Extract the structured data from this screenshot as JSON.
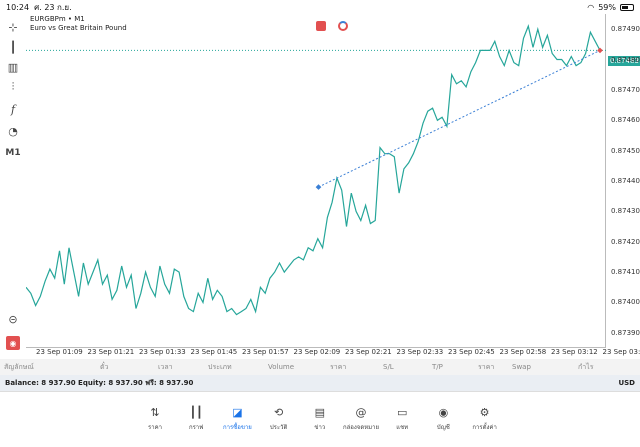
{
  "status": {
    "time": "10:24",
    "date": "ศ. 23 ก.ย.",
    "battery": "59%"
  },
  "chart": {
    "symbol": "EURGBPm • M1",
    "description": "Euro vs Great Britain Pound",
    "current_price": "0.87483",
    "line_color": "#26a69a",
    "trend_color": "#3a7fd5",
    "price_ticks": [
      "0.87490",
      "0.87480",
      "0.87470",
      "0.87460",
      "0.87450",
      "0.87440",
      "0.87430",
      "0.87420",
      "0.87410",
      "0.87400",
      "0.87390"
    ],
    "time_ticks": [
      "23 Sep 01:09",
      "23 Sep 01:21",
      "23 Sep 01:33",
      "23 Sep 01:45",
      "23 Sep 01:57",
      "23 Sep 02:09",
      "23 Sep 02:21",
      "23 Sep 02:33",
      "23 Sep 02:45",
      "23 Sep 02:58",
      "23 Sep 03:12",
      "23 Sep 03:2"
    ]
  },
  "chart_data": {
    "type": "line",
    "ylim": [
      0.87385,
      0.87495
    ],
    "values": [
      0.87405,
      0.87403,
      0.87399,
      0.87402,
      0.87407,
      0.87411,
      0.87408,
      0.87417,
      0.87406,
      0.87418,
      0.8741,
      0.87402,
      0.87413,
      0.87406,
      0.8741,
      0.87414,
      0.87406,
      0.87409,
      0.87401,
      0.87404,
      0.87412,
      0.87405,
      0.87409,
      0.87398,
      0.87403,
      0.8741,
      0.87405,
      0.87402,
      0.87412,
      0.87406,
      0.87403,
      0.87411,
      0.8741,
      0.87402,
      0.87398,
      0.87397,
      0.87403,
      0.874,
      0.87408,
      0.87401,
      0.87404,
      0.87402,
      0.87397,
      0.87398,
      0.87396,
      0.87397,
      0.87398,
      0.87401,
      0.87397,
      0.87405,
      0.87403,
      0.87408,
      0.8741,
      0.87413,
      0.8741,
      0.87412,
      0.87414,
      0.87415,
      0.87414,
      0.87418,
      0.87417,
      0.87421,
      0.87418,
      0.87428,
      0.87433,
      0.87441,
      0.87437,
      0.87425,
      0.87436,
      0.8743,
      0.87427,
      0.87432,
      0.87426,
      0.87427,
      0.87451,
      0.87449,
      0.87449,
      0.87448,
      0.87436,
      0.87444,
      0.87446,
      0.87449,
      0.87453,
      0.87459,
      0.87463,
      0.87464,
      0.8746,
      0.87461,
      0.87458,
      0.87475,
      0.87472,
      0.87473,
      0.87471,
      0.87476,
      0.87479,
      0.87483,
      0.87483,
      0.87483,
      0.87486,
      0.87481,
      0.87478,
      0.87483,
      0.87479,
      0.87478,
      0.87487,
      0.87491,
      0.87484,
      0.8749,
      0.87484,
      0.87488,
      0.87482,
      0.8748,
      0.8748,
      0.87478,
      0.87481,
      0.87478,
      0.87479,
      0.87482,
      0.87489,
      0.87486,
      0.87483
    ],
    "trend_line": {
      "x": [
        "23 Sep 02:09",
        "23 Sep 03:21"
      ],
      "y": [
        0.87438,
        0.87483
      ]
    }
  },
  "toolbar": {
    "crosshair": "crosshair-icon",
    "candles": "candles-icon",
    "indicators": "indicators-icon",
    "objects": "objects-icon",
    "function": "f",
    "shapes": "shapes-icon",
    "timeframe": "M1",
    "zoom": "zoom-icon"
  },
  "table": {
    "headers": [
      "สัญลักษณ์",
      "ตั๋ว",
      "เวลา",
      "ประเภท",
      "Volume",
      "ราคา",
      "S/L",
      "T/P",
      "ราคา",
      "Swap",
      "กำไร"
    ]
  },
  "balance": {
    "text": "Balance: 8 937.90 Equity: 8 937.90 ฟรี: 8 937.90",
    "currency": "USD"
  },
  "nav": [
    {
      "label": "ราคา",
      "icon": "quotes-icon"
    },
    {
      "label": "กราฟ",
      "icon": "chart-icon"
    },
    {
      "label": "การซื้อขาย",
      "icon": "trade-icon"
    },
    {
      "label": "ประวัติ",
      "icon": "history-icon"
    },
    {
      "label": "ข่าว",
      "icon": "news-icon"
    },
    {
      "label": "กล่องจดหมาย",
      "icon": "mail-icon"
    },
    {
      "label": "แชท",
      "icon": "chat-icon"
    },
    {
      "label": "บัญชี",
      "icon": "account-icon"
    },
    {
      "label": "การตั้งค่า",
      "icon": "settings-icon"
    }
  ]
}
